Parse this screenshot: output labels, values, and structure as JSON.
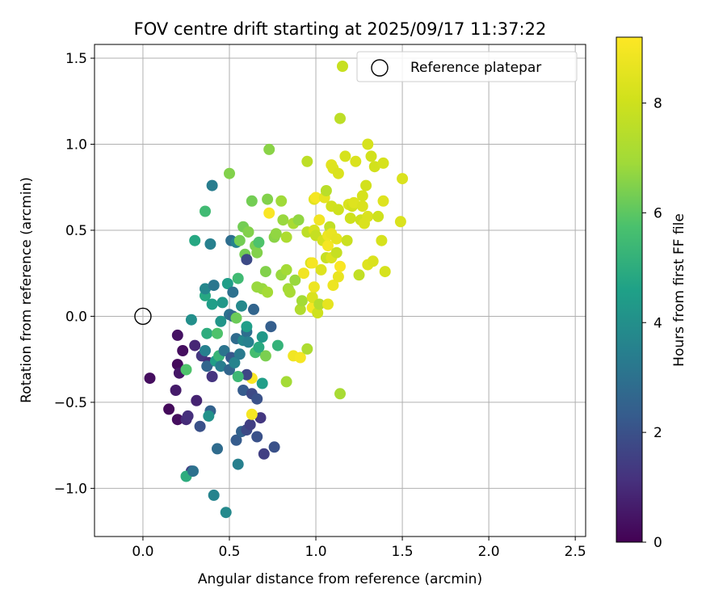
{
  "chart_data": {
    "type": "scatter",
    "title": "FOV centre drift starting at 2025/09/17 11:37:22",
    "xlabel": "Angular distance from reference (arcmin)",
    "ylabel": "Rotation from reference (arcmin)",
    "xlim": [
      -0.28,
      2.56
    ],
    "ylim": [
      -1.28,
      1.58
    ],
    "x_ticks": [
      0.0,
      0.5,
      1.0,
      1.5,
      2.0,
      2.5
    ],
    "x_tick_labels": [
      "0.0",
      "0.5",
      "1.0",
      "1.5",
      "2.0",
      "2.5"
    ],
    "y_ticks": [
      -1.0,
      -0.5,
      0.0,
      0.5,
      1.0,
      1.5
    ],
    "y_tick_labels": [
      "−1.0",
      "−0.5",
      "0.0",
      "0.5",
      "1.0",
      "1.5"
    ],
    "grid": true,
    "legend": {
      "position": "upper-right",
      "entries": [
        "Reference platepar"
      ]
    },
    "reference_point": {
      "name": "Reference platepar",
      "x": 0.0,
      "y": 0.0
    },
    "colorbar": {
      "label": "Hours from first FF file",
      "range": [
        0,
        9.2
      ],
      "ticks": [
        0,
        2,
        4,
        6,
        8
      ],
      "tick_labels": [
        "0",
        "2",
        "4",
        "6",
        "8"
      ],
      "colormap": "viridis"
    },
    "points": [
      {
        "x": 0.04,
        "y": -0.36,
        "h": 0.3
      },
      {
        "x": 0.2,
        "y": -0.11,
        "h": 0.4
      },
      {
        "x": 0.2,
        "y": -0.28,
        "h": 0.2
      },
      {
        "x": 0.21,
        "y": -0.33,
        "h": 0.5
      },
      {
        "x": 0.23,
        "y": -0.2,
        "h": 0.3
      },
      {
        "x": 0.19,
        "y": -0.43,
        "h": 0.6
      },
      {
        "x": 0.15,
        "y": -0.54,
        "h": 0.2
      },
      {
        "x": 0.2,
        "y": -0.6,
        "h": 0.3
      },
      {
        "x": 0.25,
        "y": -0.6,
        "h": 1.0
      },
      {
        "x": 0.26,
        "y": -0.58,
        "h": 1.1
      },
      {
        "x": 0.3,
        "y": -0.17,
        "h": 0.9
      },
      {
        "x": 0.31,
        "y": -0.49,
        "h": 0.8
      },
      {
        "x": 0.28,
        "y": -0.9,
        "h": 1.5
      },
      {
        "x": 0.34,
        "y": -0.23,
        "h": 1.3
      },
      {
        "x": 0.33,
        "y": -0.64,
        "h": 2.0
      },
      {
        "x": 0.38,
        "y": -0.27,
        "h": 1.0
      },
      {
        "x": 0.4,
        "y": -0.35,
        "h": 1.2
      },
      {
        "x": 0.39,
        "y": -0.55,
        "h": 2.5
      },
      {
        "x": 0.41,
        "y": -1.04,
        "h": 3.6
      },
      {
        "x": 0.43,
        "y": -0.77,
        "h": 2.8
      },
      {
        "x": 0.48,
        "y": -1.14,
        "h": 3.8
      },
      {
        "x": 0.55,
        "y": -0.86,
        "h": 3.5
      },
      {
        "x": 0.54,
        "y": -0.72,
        "h": 2.3
      },
      {
        "x": 0.57,
        "y": -0.67,
        "h": 2.5
      },
      {
        "x": 0.6,
        "y": -0.66,
        "h": 1.8
      },
      {
        "x": 0.62,
        "y": -0.63,
        "h": 1.5
      },
      {
        "x": 0.68,
        "y": -0.59,
        "h": 1.3
      },
      {
        "x": 0.66,
        "y": -0.7,
        "h": 2.0
      },
      {
        "x": 0.7,
        "y": -0.8,
        "h": 1.5
      },
      {
        "x": 0.76,
        "y": -0.76,
        "h": 2.0
      },
      {
        "x": 0.63,
        "y": -0.57,
        "h": 9.0
      },
      {
        "x": 0.63,
        "y": -0.36,
        "h": 9.1
      },
      {
        "x": 0.6,
        "y": -0.34,
        "h": 1.7
      },
      {
        "x": 0.58,
        "y": -0.43,
        "h": 2.3
      },
      {
        "x": 0.63,
        "y": -0.45,
        "h": 1.8
      },
      {
        "x": 0.66,
        "y": -0.48,
        "h": 2.0
      },
      {
        "x": 0.69,
        "y": -0.39,
        "h": 4.5
      },
      {
        "x": 0.71,
        "y": -0.23,
        "h": 6.4
      },
      {
        "x": 0.74,
        "y": -0.06,
        "h": 2.4
      },
      {
        "x": 0.78,
        "y": -0.17,
        "h": 5.2
      },
      {
        "x": 0.83,
        "y": -0.38,
        "h": 7.0
      },
      {
        "x": 0.87,
        "y": -0.23,
        "h": 8.9
      },
      {
        "x": 0.91,
        "y": -0.24,
        "h": 9.0
      },
      {
        "x": 0.95,
        "y": -0.19,
        "h": 7.2
      },
      {
        "x": 1.14,
        "y": -0.45,
        "h": 7.1
      },
      {
        "x": 0.25,
        "y": -0.93,
        "h": 5.0
      },
      {
        "x": 0.29,
        "y": -0.9,
        "h": 3.0
      },
      {
        "x": 0.36,
        "y": -0.2,
        "h": 3.5
      },
      {
        "x": 0.37,
        "y": -0.29,
        "h": 2.6
      },
      {
        "x": 0.38,
        "y": -0.58,
        "h": 4.1
      },
      {
        "x": 0.42,
        "y": -0.26,
        "h": 4.5
      },
      {
        "x": 0.44,
        "y": -0.23,
        "h": 5.3
      },
      {
        "x": 0.45,
        "y": -0.29,
        "h": 3.4
      },
      {
        "x": 0.47,
        "y": -0.2,
        "h": 3.1
      },
      {
        "x": 0.5,
        "y": -0.31,
        "h": 2.6
      },
      {
        "x": 0.51,
        "y": -0.24,
        "h": 2.2
      },
      {
        "x": 0.53,
        "y": -0.27,
        "h": 3.6
      },
      {
        "x": 0.54,
        "y": -0.13,
        "h": 2.8
      },
      {
        "x": 0.55,
        "y": -0.35,
        "h": 5.4
      },
      {
        "x": 0.56,
        "y": -0.22,
        "h": 3.3
      },
      {
        "x": 0.58,
        "y": -0.14,
        "h": 3.7
      },
      {
        "x": 0.6,
        "y": -0.09,
        "h": 2.9
      },
      {
        "x": 0.61,
        "y": -0.15,
        "h": 3.5
      },
      {
        "x": 0.65,
        "y": -0.21,
        "h": 5.6
      },
      {
        "x": 0.67,
        "y": -0.18,
        "h": 4.9
      },
      {
        "x": 0.69,
        "y": -0.12,
        "h": 4.3
      },
      {
        "x": 0.25,
        "y": -0.31,
        "h": 5.8
      },
      {
        "x": 0.28,
        "y": -0.02,
        "h": 4.0
      },
      {
        "x": 0.37,
        "y": -0.1,
        "h": 5.0
      },
      {
        "x": 0.43,
        "y": -0.1,
        "h": 5.8
      },
      {
        "x": 0.45,
        "y": -0.03,
        "h": 4.2
      },
      {
        "x": 0.5,
        "y": 0.01,
        "h": 3.0
      },
      {
        "x": 0.52,
        "y": 0.0,
        "h": 2.7
      },
      {
        "x": 0.54,
        "y": -0.01,
        "h": 6.2
      },
      {
        "x": 0.57,
        "y": 0.06,
        "h": 3.8
      },
      {
        "x": 0.6,
        "y": -0.06,
        "h": 4.5
      },
      {
        "x": 0.64,
        "y": 0.04,
        "h": 2.6
      },
      {
        "x": 0.36,
        "y": 0.12,
        "h": 4.8
      },
      {
        "x": 0.36,
        "y": 0.16,
        "h": 3.7
      },
      {
        "x": 0.4,
        "y": 0.07,
        "h": 4.5
      },
      {
        "x": 0.41,
        "y": 0.18,
        "h": 3.2
      },
      {
        "x": 0.46,
        "y": 0.08,
        "h": 4.3
      },
      {
        "x": 0.49,
        "y": 0.19,
        "h": 4.5
      },
      {
        "x": 0.52,
        "y": 0.14,
        "h": 3.0
      },
      {
        "x": 0.55,
        "y": 0.22,
        "h": 5.5
      },
      {
        "x": 0.3,
        "y": 0.44,
        "h": 4.8
      },
      {
        "x": 0.39,
        "y": 0.42,
        "h": 3.5
      },
      {
        "x": 0.36,
        "y": 0.61,
        "h": 5.5
      },
      {
        "x": 0.4,
        "y": 0.76,
        "h": 3.4
      },
      {
        "x": 0.51,
        "y": 0.44,
        "h": 2.9
      },
      {
        "x": 0.54,
        "y": 0.43,
        "h": 3.6
      },
      {
        "x": 0.56,
        "y": 0.44,
        "h": 6.3
      },
      {
        "x": 0.58,
        "y": 0.52,
        "h": 6.3
      },
      {
        "x": 0.59,
        "y": 0.36,
        "h": 6.3
      },
      {
        "x": 0.6,
        "y": 0.33,
        "h": 1.8
      },
      {
        "x": 0.61,
        "y": 0.49,
        "h": 6.5
      },
      {
        "x": 0.65,
        "y": 0.41,
        "h": 6.4
      },
      {
        "x": 0.66,
        "y": 0.37,
        "h": 6.5
      },
      {
        "x": 0.67,
        "y": 0.43,
        "h": 5.8
      },
      {
        "x": 0.66,
        "y": 0.17,
        "h": 6.8
      },
      {
        "x": 0.69,
        "y": 0.16,
        "h": 6.8
      },
      {
        "x": 0.71,
        "y": 0.26,
        "h": 6.5
      },
      {
        "x": 0.72,
        "y": 0.14,
        "h": 7.0
      },
      {
        "x": 0.5,
        "y": 0.83,
        "h": 6.5
      },
      {
        "x": 0.63,
        "y": 0.67,
        "h": 6.3
      },
      {
        "x": 0.72,
        "y": 0.68,
        "h": 6.5
      },
      {
        "x": 0.73,
        "y": 0.97,
        "h": 6.6
      },
      {
        "x": 0.73,
        "y": 0.6,
        "h": 9.1
      },
      {
        "x": 0.76,
        "y": 0.46,
        "h": 6.6
      },
      {
        "x": 0.77,
        "y": 0.48,
        "h": 6.7
      },
      {
        "x": 0.8,
        "y": 0.67,
        "h": 6.9
      },
      {
        "x": 0.81,
        "y": 0.56,
        "h": 6.8
      },
      {
        "x": 0.8,
        "y": 0.24,
        "h": 6.8
      },
      {
        "x": 0.83,
        "y": 0.27,
        "h": 7.0
      },
      {
        "x": 0.83,
        "y": 0.46,
        "h": 7.2
      },
      {
        "x": 0.84,
        "y": 0.16,
        "h": 7.0
      },
      {
        "x": 0.85,
        "y": 0.14,
        "h": 7.1
      },
      {
        "x": 0.87,
        "y": 0.54,
        "h": 7.1
      },
      {
        "x": 0.88,
        "y": 0.21,
        "h": 6.8
      },
      {
        "x": 0.9,
        "y": 0.56,
        "h": 6.7
      },
      {
        "x": 0.91,
        "y": 0.04,
        "h": 7.3
      },
      {
        "x": 0.92,
        "y": 0.09,
        "h": 7.0
      },
      {
        "x": 0.93,
        "y": 0.25,
        "h": 8.9
      },
      {
        "x": 0.95,
        "y": 0.49,
        "h": 7.6
      },
      {
        "x": 0.95,
        "y": 0.9,
        "h": 7.6
      },
      {
        "x": 0.97,
        "y": 0.31,
        "h": 8.3
      },
      {
        "x": 0.98,
        "y": 0.31,
        "h": 9.0
      },
      {
        "x": 0.98,
        "y": 0.05,
        "h": 9.0
      },
      {
        "x": 0.98,
        "y": 0.11,
        "h": 8.3
      },
      {
        "x": 0.99,
        "y": 0.17,
        "h": 8.8
      },
      {
        "x": 0.99,
        "y": 0.5,
        "h": 8.2
      },
      {
        "x": 0.99,
        "y": 0.68,
        "h": 8.5
      },
      {
        "x": 1.0,
        "y": 0.69,
        "h": 9.0
      },
      {
        "x": 1.0,
        "y": 0.47,
        "h": 7.8
      },
      {
        "x": 1.01,
        "y": 0.02,
        "h": 8.0
      },
      {
        "x": 1.02,
        "y": 0.07,
        "h": 7.4
      },
      {
        "x": 1.02,
        "y": 0.56,
        "h": 8.9
      },
      {
        "x": 1.03,
        "y": 0.27,
        "h": 8.4
      },
      {
        "x": 1.04,
        "y": 0.44,
        "h": 8.2
      },
      {
        "x": 1.05,
        "y": 0.69,
        "h": 8.6
      },
      {
        "x": 1.06,
        "y": 0.34,
        "h": 7.8
      },
      {
        "x": 1.06,
        "y": 0.73,
        "h": 7.5
      },
      {
        "x": 1.07,
        "y": 0.07,
        "h": 8.6
      },
      {
        "x": 1.07,
        "y": 0.41,
        "h": 9.0
      },
      {
        "x": 1.07,
        "y": 0.47,
        "h": 8.8
      },
      {
        "x": 1.08,
        "y": 0.52,
        "h": 7.7
      },
      {
        "x": 1.09,
        "y": 0.64,
        "h": 8.1
      },
      {
        "x": 1.09,
        "y": 0.88,
        "h": 8.5
      },
      {
        "x": 1.09,
        "y": 0.34,
        "h": 8.3
      },
      {
        "x": 1.09,
        "y": 0.48,
        "h": 8.7
      },
      {
        "x": 1.1,
        "y": 0.18,
        "h": 8.8
      },
      {
        "x": 1.1,
        "y": 0.86,
        "h": 8.4
      },
      {
        "x": 1.12,
        "y": 0.37,
        "h": 7.8
      },
      {
        "x": 1.12,
        "y": 0.45,
        "h": 8.6
      },
      {
        "x": 1.13,
        "y": 0.83,
        "h": 8.3
      },
      {
        "x": 1.13,
        "y": 0.62,
        "h": 8.0
      },
      {
        "x": 1.13,
        "y": 0.23,
        "h": 8.7
      },
      {
        "x": 1.14,
        "y": 1.15,
        "h": 7.6
      },
      {
        "x": 1.14,
        "y": 0.29,
        "h": 9.1
      },
      {
        "x": 1.17,
        "y": 0.93,
        "h": 8.2
      },
      {
        "x": 1.18,
        "y": 0.44,
        "h": 7.9
      },
      {
        "x": 1.19,
        "y": 0.65,
        "h": 8.3
      },
      {
        "x": 1.2,
        "y": 0.57,
        "h": 8.0
      },
      {
        "x": 1.21,
        "y": 0.64,
        "h": 8.1
      },
      {
        "x": 1.22,
        "y": 0.66,
        "h": 8.4
      },
      {
        "x": 1.23,
        "y": 0.9,
        "h": 8.3
      },
      {
        "x": 1.25,
        "y": 0.24,
        "h": 7.7
      },
      {
        "x": 1.26,
        "y": 0.56,
        "h": 8.0
      },
      {
        "x": 1.27,
        "y": 0.64,
        "h": 8.3
      },
      {
        "x": 1.27,
        "y": 0.7,
        "h": 8.2
      },
      {
        "x": 1.28,
        "y": 0.54,
        "h": 8.3
      },
      {
        "x": 1.29,
        "y": 0.76,
        "h": 8.1
      },
      {
        "x": 1.3,
        "y": 1.0,
        "h": 8.2
      },
      {
        "x": 1.3,
        "y": 0.58,
        "h": 8.3
      },
      {
        "x": 1.3,
        "y": 0.3,
        "h": 8.4
      },
      {
        "x": 1.32,
        "y": 0.93,
        "h": 8.1
      },
      {
        "x": 1.33,
        "y": 0.32,
        "h": 8.3
      },
      {
        "x": 1.34,
        "y": 0.87,
        "h": 8.1
      },
      {
        "x": 1.36,
        "y": 0.58,
        "h": 8.0
      },
      {
        "x": 1.38,
        "y": 0.44,
        "h": 8.2
      },
      {
        "x": 1.39,
        "y": 0.89,
        "h": 8.2
      },
      {
        "x": 1.39,
        "y": 0.67,
        "h": 8.4
      },
      {
        "x": 1.4,
        "y": 0.26,
        "h": 8.2
      },
      {
        "x": 1.49,
        "y": 0.55,
        "h": 8.3
      },
      {
        "x": 1.5,
        "y": 0.8,
        "h": 8.3
      }
    ]
  }
}
